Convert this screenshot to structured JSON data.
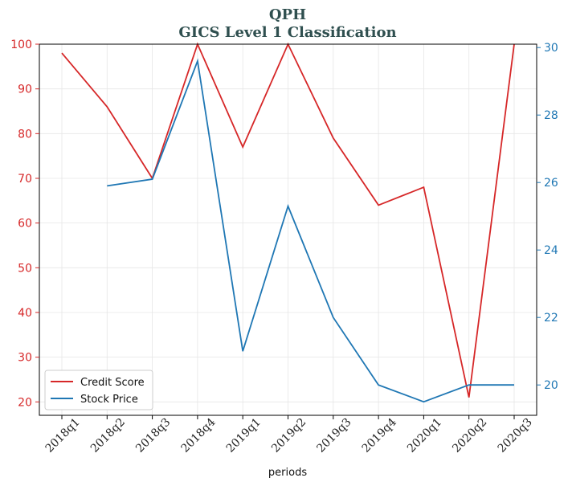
{
  "chart_data": {
    "type": "line",
    "title": "QPH",
    "subtitle": "GICS Level 1 Classification",
    "xlabel": "periods",
    "ylabel_left": "",
    "ylabel_right": "",
    "categories": [
      "2018q1",
      "2018q2",
      "2018q3",
      "2018q4",
      "2019q1",
      "2019q2",
      "2019q3",
      "2019q4",
      "2020q1",
      "2020q2",
      "2020q3"
    ],
    "y_left": {
      "lim": [
        17,
        100
      ],
      "ticks": [
        20,
        30,
        40,
        50,
        60,
        70,
        80,
        90,
        100
      ],
      "color": "#d62728"
    },
    "y_right": {
      "lim": [
        19.1,
        30.1
      ],
      "ticks": [
        20,
        22,
        24,
        26,
        28,
        30
      ],
      "color": "#1f77b4"
    },
    "grid": true,
    "legend_position": "lower-left",
    "series": [
      {
        "name": "Credit Score",
        "axis": "left",
        "color": "#d62728",
        "values": [
          98,
          86,
          70,
          100,
          77,
          100,
          79,
          64,
          68,
          21,
          100
        ]
      },
      {
        "name": "Stock Price",
        "axis": "right",
        "color": "#1f77b4",
        "values": [
          null,
          25.9,
          26.1,
          29.6,
          21.0,
          25.3,
          22.0,
          20.0,
          19.5,
          20.0,
          20.0
        ]
      }
    ]
  }
}
